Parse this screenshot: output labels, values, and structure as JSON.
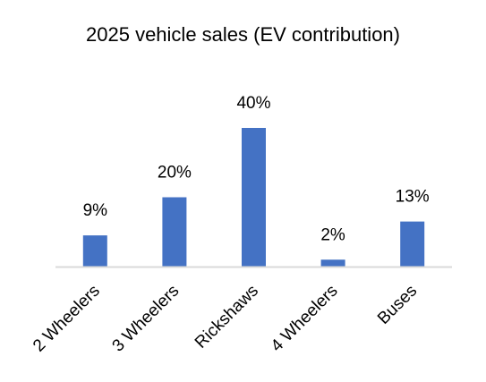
{
  "chart_data": {
    "type": "bar",
    "title": "2025 vehicle sales (EV contribution)",
    "categories": [
      "2 Wheelers",
      "3 Wheelers",
      "Rickshaws",
      "4 Wheelers",
      "Buses"
    ],
    "values": [
      9,
      20,
      40,
      2,
      13
    ],
    "data_labels": [
      "9%",
      "20%",
      "40%",
      "2%",
      "13%"
    ],
    "xlabel": "",
    "ylabel": "",
    "ylim": [
      0,
      40
    ],
    "grid": false,
    "legend": "none",
    "colors": {
      "bar": "#4472C4",
      "axis": "#D9D9D9",
      "text": "#000000"
    }
  }
}
